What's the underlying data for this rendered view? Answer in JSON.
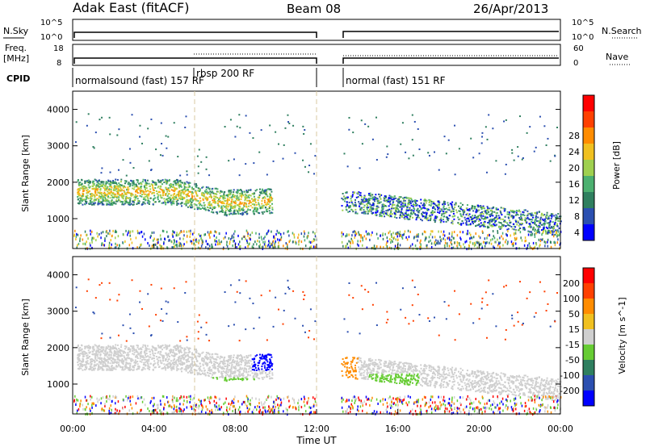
{
  "header": {
    "station": "Adak East (fitACF)",
    "beam": "Beam 08",
    "date": "26/Apr/2013"
  },
  "strips": {
    "nsky_label": "N.Sky",
    "nsky_top": "10^5",
    "nsky_bottom": "10^0",
    "nsearch_label": "N.Search",
    "nsearch_top": "10^5",
    "nsearch_bottom": "10^0",
    "freq_label_1": "Freq.",
    "freq_label_2": "[MHz]",
    "freq_top": "18",
    "freq_bottom": "8",
    "nave_label": "Nave",
    "nave_top": "60",
    "nave_bottom": "0",
    "cpid_label": "CPID",
    "cpid_segments": [
      {
        "label": "normalsound (fast) 157 RF",
        "start_h": 0,
        "end_h": 12
      },
      {
        "label": "rbsp 200 RF",
        "start_h": 6,
        "end_h": 12
      },
      {
        "label": "normal (fast) 151 RF",
        "start_h": 13.2,
        "end_h": 24
      }
    ]
  },
  "chart_data": [
    {
      "type": "heatmap",
      "name": "power",
      "ylabel": "Slant Range [km]",
      "colorbar_label": "Power [dB]",
      "colorbar_ticks": [
        "28",
        "24",
        "20",
        "16",
        "12",
        "8",
        "4"
      ],
      "colorbar_colors": [
        "#0000ff",
        "#2b4fb0",
        "#2f7f5f",
        "#4cb070",
        "#9fd04f",
        "#f0c020",
        "#ff8c00",
        "#ff4000",
        "#ff0000"
      ],
      "xlim_hours": [
        0,
        24
      ],
      "ylim_km": [
        180,
        4500
      ],
      "ytick_labels": [
        "1000",
        "2000",
        "3000",
        "4000"
      ],
      "x_tick_labels": [
        "00:00",
        "04:00",
        "08:00",
        "12:00",
        "16:00",
        "20:00",
        "00:00"
      ],
      "data_gap_hours": [
        12,
        13.2
      ],
      "features": [
        {
          "t0": 0.2,
          "t1": 9.8,
          "range_center_km": [
            1750,
            1650,
            1400,
            1500
          ],
          "db": 22
        },
        {
          "t0": 13.2,
          "t1": 24,
          "range_center_km": [
            1500,
            1200,
            900,
            800
          ],
          "db": 14
        }
      ]
    },
    {
      "type": "heatmap",
      "name": "velocity",
      "ylabel": "Slant Range [km]",
      "colorbar_label": "Velocity [m s^-1]",
      "colorbar_ticks": [
        "200",
        "100",
        "50",
        "15",
        "-15",
        "-50",
        "-100",
        "-200"
      ],
      "colorbar_colors": [
        "#0000ff",
        "#2b4fb0",
        "#2f7f5f",
        "#66cc33",
        "#cfcfcf",
        "#f0c020",
        "#ff8c00",
        "#ff4000",
        "#ff0000"
      ],
      "xlim_hours": [
        0,
        24
      ],
      "ylim_km": [
        180,
        4500
      ],
      "ytick_labels": [
        "1000",
        "2000",
        "3000",
        "4000"
      ],
      "x_tick_labels": [
        "00:00",
        "04:00",
        "08:00",
        "12:00",
        "16:00",
        "20:00",
        "00:00"
      ]
    }
  ],
  "xaxis": {
    "label": "Time UT",
    "tick_labels": [
      "00:00",
      "04:00",
      "08:00",
      "12:00",
      "16:00",
      "20:00",
      "00:00"
    ]
  }
}
